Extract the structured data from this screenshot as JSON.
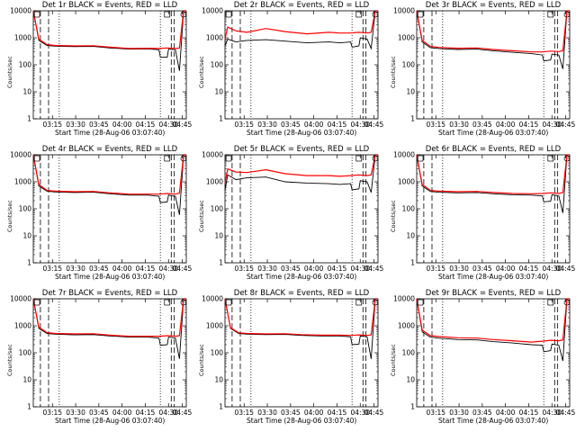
{
  "common": {
    "ylabel": "Counts/sec",
    "xlabel": "Start Time (28-Aug-06 03:07:40)",
    "x_tick_labels": [
      "03:15",
      "03:30",
      "03:45",
      "04:00",
      "04:15",
      "04:30",
      "04:45"
    ],
    "y_tick_labels": [
      "1",
      "10",
      "100",
      "1000",
      "10000"
    ],
    "colors": {
      "events": "#000000",
      "lld": "#ff0000"
    }
  },
  "chart_data": [
    {
      "type": "line",
      "title": "Det 1r BLACK = Events, RED = LLD",
      "xlabel": "Start Time (28-Aug-06 03:07:40)",
      "ylabel": "Counts/sec",
      "yscale": "log",
      "ylim": [
        1,
        10000
      ],
      "x_range_min": [
        0,
        56
      ],
      "series": [
        {
          "name": "Events",
          "color": "#000000",
          "x": [
            0,
            2,
            5,
            8,
            15,
            22,
            28,
            35,
            42,
            46,
            46.5,
            49,
            49.5,
            52,
            53.5,
            55,
            56
          ],
          "values": [
            10000,
            800,
            520,
            490,
            470,
            480,
            420,
            380,
            390,
            360,
            190,
            190,
            380,
            360,
            60,
            10000,
            10000
          ]
        },
        {
          "name": "LLD",
          "color": "#ff0000",
          "x": [
            0,
            2,
            5,
            8,
            15,
            22,
            28,
            35,
            42,
            46,
            49,
            52,
            53.5,
            55,
            56
          ],
          "values": [
            10000,
            900,
            560,
            520,
            500,
            510,
            450,
            400,
            410,
            400,
            420,
            400,
            420,
            10000,
            10000
          ]
        }
      ]
    },
    {
      "type": "line",
      "title": "Det 2r BLACK = Events, RED = LLD",
      "xlabel": "Start Time (28-Aug-06 03:07:40)",
      "ylabel": "Counts/sec",
      "yscale": "log",
      "ylim": [
        1,
        10000
      ],
      "x_range_min": [
        0,
        56
      ],
      "series": [
        {
          "name": "Events",
          "color": "#000000",
          "x": [
            0,
            1,
            4,
            8,
            15,
            22,
            30,
            38,
            42,
            46,
            46.5,
            49,
            49.5,
            52,
            53.5,
            55,
            56
          ],
          "values": [
            500,
            900,
            700,
            800,
            850,
            750,
            650,
            700,
            650,
            700,
            450,
            500,
            1000,
            900,
            400,
            10000,
            10000
          ]
        },
        {
          "name": "LLD",
          "color": "#ff0000",
          "x": [
            0,
            1,
            4,
            8,
            15,
            22,
            30,
            38,
            42,
            46,
            49,
            52,
            53.5,
            55,
            56
          ],
          "values": [
            900,
            2500,
            1800,
            1600,
            2200,
            1700,
            1400,
            1600,
            1500,
            1500,
            1600,
            1500,
            1600,
            10000,
            10000
          ]
        }
      ]
    },
    {
      "type": "line",
      "title": "Det 3r BLACK = Events, RED = LLD",
      "xlabel": "Start Time (28-Aug-06 03:07:40)",
      "ylabel": "Counts/sec",
      "yscale": "log",
      "ylim": [
        1,
        10000
      ],
      "x_range_min": [
        0,
        56
      ],
      "series": [
        {
          "name": "Events",
          "color": "#000000",
          "x": [
            0,
            2,
            5,
            8,
            15,
            22,
            28,
            35,
            42,
            46,
            46.5,
            49,
            49.5,
            52,
            53.5,
            55,
            56
          ],
          "values": [
            10000,
            700,
            430,
            400,
            370,
            380,
            330,
            290,
            260,
            230,
            140,
            150,
            250,
            230,
            70,
            10000,
            10000
          ]
        },
        {
          "name": "LLD",
          "color": "#ff0000",
          "x": [
            0,
            2,
            5,
            8,
            15,
            22,
            28,
            35,
            42,
            46,
            49,
            52,
            53.5,
            55,
            56
          ],
          "values": [
            10000,
            800,
            480,
            440,
            410,
            420,
            370,
            330,
            300,
            300,
            320,
            310,
            330,
            10000,
            10000
          ]
        }
      ]
    },
    {
      "type": "line",
      "title": "Det 4r BLACK = Events, RED = LLD",
      "xlabel": "Start Time (28-Aug-06 03:07:40)",
      "ylabel": "Counts/sec",
      "yscale": "log",
      "ylim": [
        1,
        10000
      ],
      "x_range_min": [
        0,
        56
      ],
      "series": [
        {
          "name": "Events",
          "color": "#000000",
          "x": [
            0,
            2,
            5,
            8,
            15,
            22,
            28,
            35,
            42,
            46,
            46.5,
            49,
            49.5,
            52,
            53.5,
            55,
            56
          ],
          "values": [
            10000,
            700,
            450,
            420,
            400,
            410,
            360,
            320,
            320,
            290,
            170,
            180,
            320,
            290,
            60,
            10000,
            10000
          ]
        },
        {
          "name": "LLD",
          "color": "#ff0000",
          "x": [
            0,
            2,
            5,
            8,
            15,
            22,
            28,
            35,
            42,
            46,
            49,
            52,
            53.5,
            55,
            56
          ],
          "values": [
            10000,
            800,
            480,
            450,
            430,
            440,
            390,
            350,
            350,
            350,
            370,
            350,
            380,
            10000,
            10000
          ]
        }
      ]
    },
    {
      "type": "line",
      "title": "Det 5r BLACK = Events, RED = LLD",
      "xlabel": "Start Time (28-Aug-06 03:07:40)",
      "ylabel": "Counts/sec",
      "yscale": "log",
      "ylim": [
        1,
        10000
      ],
      "x_range_min": [
        0,
        56
      ],
      "series": [
        {
          "name": "Events",
          "color": "#000000",
          "x": [
            0,
            1,
            4,
            8,
            15,
            22,
            30,
            38,
            42,
            46,
            46.5,
            49,
            49.5,
            52,
            53.5,
            55,
            56
          ],
          "values": [
            500,
            1800,
            1200,
            1400,
            1500,
            1000,
            900,
            850,
            800,
            850,
            500,
            550,
            1100,
            1000,
            400,
            10000,
            10000
          ]
        },
        {
          "name": "LLD",
          "color": "#ff0000",
          "x": [
            0,
            1,
            4,
            8,
            15,
            22,
            30,
            38,
            42,
            46,
            49,
            52,
            53.5,
            55,
            56
          ],
          "values": [
            900,
            3000,
            2300,
            2200,
            2800,
            2000,
            1700,
            1700,
            1600,
            1700,
            1800,
            1700,
            1800,
            10000,
            10000
          ]
        }
      ]
    },
    {
      "type": "line",
      "title": "Det 6r BLACK = Events, RED = LLD",
      "xlabel": "Start Time (28-Aug-06 03:07:40)",
      "ylabel": "Counts/sec",
      "yscale": "log",
      "ylim": [
        1,
        10000
      ],
      "x_range_min": [
        0,
        56
      ],
      "series": [
        {
          "name": "Events",
          "color": "#000000",
          "x": [
            0,
            2,
            5,
            8,
            15,
            22,
            28,
            35,
            42,
            46,
            46.5,
            49,
            49.5,
            52,
            53.5,
            55,
            56
          ],
          "values": [
            10000,
            700,
            440,
            410,
            390,
            400,
            360,
            330,
            320,
            300,
            180,
            190,
            330,
            300,
            70,
            10000,
            10000
          ]
        },
        {
          "name": "LLD",
          "color": "#ff0000",
          "x": [
            0,
            2,
            5,
            8,
            15,
            22,
            28,
            35,
            42,
            46,
            49,
            52,
            53.5,
            55,
            56
          ],
          "values": [
            10000,
            800,
            480,
            450,
            430,
            440,
            400,
            370,
            360,
            370,
            390,
            370,
            400,
            10000,
            10000
          ]
        }
      ]
    },
    {
      "type": "line",
      "title": "Det 7r BLACK = Events, RED = LLD",
      "xlabel": "Start Time (28-Aug-06 03:07:40)",
      "ylabel": "Counts/sec",
      "yscale": "log",
      "ylim": [
        1,
        10000
      ],
      "x_range_min": [
        0,
        56
      ],
      "series": [
        {
          "name": "Events",
          "color": "#000000",
          "x": [
            0,
            2,
            5,
            8,
            15,
            22,
            28,
            35,
            42,
            46,
            46.5,
            49,
            49.5,
            52,
            53.5,
            55,
            56
          ],
          "values": [
            10000,
            800,
            520,
            490,
            460,
            470,
            420,
            380,
            380,
            350,
            190,
            200,
            380,
            350,
            60,
            10000,
            10000
          ]
        },
        {
          "name": "LLD",
          "color": "#ff0000",
          "x": [
            0,
            2,
            5,
            8,
            15,
            22,
            28,
            35,
            42,
            46,
            49,
            52,
            53.5,
            55,
            56
          ],
          "values": [
            10000,
            900,
            560,
            520,
            500,
            510,
            450,
            410,
            410,
            410,
            430,
            410,
            430,
            10000,
            10000
          ]
        }
      ]
    },
    {
      "type": "line",
      "title": "Det 8r BLACK = Events, RED = LLD",
      "xlabel": "Start Time (28-Aug-06 03:07:40)",
      "ylabel": "Counts/sec",
      "yscale": "log",
      "ylim": [
        1,
        10000
      ],
      "x_range_min": [
        0,
        56
      ],
      "series": [
        {
          "name": "Events",
          "color": "#000000",
          "x": [
            0,
            2,
            5,
            8,
            15,
            22,
            28,
            35,
            42,
            46,
            46.5,
            49,
            49.5,
            52,
            53.5,
            55,
            56
          ],
          "values": [
            10000,
            800,
            520,
            490,
            470,
            480,
            440,
            420,
            420,
            390,
            200,
            210,
            420,
            390,
            60,
            10000,
            10000
          ]
        },
        {
          "name": "LLD",
          "color": "#ff0000",
          "x": [
            0,
            2,
            5,
            8,
            15,
            22,
            28,
            35,
            42,
            46,
            49,
            52,
            53.5,
            55,
            56
          ],
          "values": [
            10000,
            850,
            550,
            520,
            500,
            510,
            470,
            450,
            450,
            440,
            460,
            440,
            460,
            10000,
            10000
          ]
        }
      ]
    },
    {
      "type": "line",
      "title": "Det 9r BLACK = Events, RED = LLD",
      "xlabel": "Start Time (28-Aug-06 03:07:40)",
      "ylabel": "Counts/sec",
      "yscale": "log",
      "ylim": [
        1,
        10000
      ],
      "x_range_min": [
        0,
        56
      ],
      "series": [
        {
          "name": "Events",
          "color": "#000000",
          "x": [
            0,
            2,
            5,
            8,
            15,
            22,
            28,
            35,
            42,
            46,
            46.5,
            49,
            49.5,
            52,
            53.5,
            55,
            56
          ],
          "values": [
            10000,
            600,
            380,
            350,
            310,
            300,
            260,
            230,
            200,
            190,
            110,
            120,
            210,
            190,
            50,
            10000,
            10000
          ]
        },
        {
          "name": "LLD",
          "color": "#ff0000",
          "x": [
            0,
            2,
            5,
            8,
            15,
            22,
            28,
            35,
            42,
            46,
            49,
            52,
            53.5,
            55,
            56
          ],
          "values": [
            10000,
            700,
            430,
            400,
            360,
            350,
            310,
            280,
            250,
            270,
            290,
            280,
            300,
            10000,
            10000
          ]
        }
      ]
    }
  ]
}
